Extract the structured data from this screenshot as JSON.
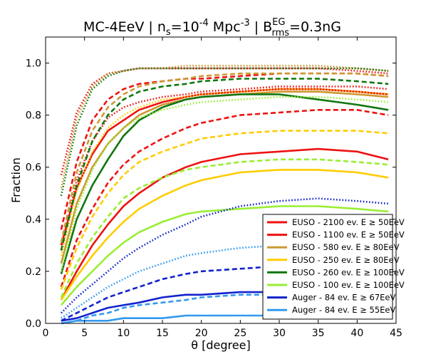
{
  "chart_data": {
    "type": "line",
    "title": {
      "main": "MC-4EeV | n",
      "ns_sub": "s",
      "eq1": "=10",
      "exp": "-4",
      "unit": " Mpc",
      "unit_exp": "-3",
      "sep": "  | B",
      "b_sup": "EG",
      "b_sub": "rms",
      "eq2": "=0.3nG"
    },
    "xlabel": "θ [degree]",
    "ylabel": "Fraction",
    "xlim": [
      0,
      45
    ],
    "ylim": [
      0,
      1.1
    ],
    "x_ticks": [
      0,
      5,
      10,
      15,
      20,
      25,
      30,
      35,
      40,
      45
    ],
    "y_ticks": [
      0.0,
      0.2,
      0.4,
      0.6,
      0.8,
      1.0
    ],
    "x_tick_labels": [
      "0",
      "5",
      "10",
      "15",
      "20",
      "25",
      "30",
      "35",
      "40",
      "45"
    ],
    "y_tick_labels": [
      "0.0",
      "0.2",
      "0.4",
      "0.6",
      "0.8",
      "1.0"
    ],
    "grid": false,
    "legend_position": "lower-right",
    "legend": [
      {
        "label": "EUSO - 2100 ev. E  ≥ 50EeV",
        "color": "#ee1111"
      },
      {
        "label": "EUSO - 1100 ev. E  ≥ 50EeV",
        "color": "#ee1111"
      },
      {
        "label": "EUSO - 580 ev. E  ≥ 80EeV",
        "color": "#cc9933"
      },
      {
        "label": "EUSO - 250 ev. E  ≥ 80EeV",
        "color": "#ffcc00"
      },
      {
        "label": "EUSO - 260 ev. E  ≥ 100EeV",
        "color": "#117711"
      },
      {
        "label": "EUSO - 100 ev. E  ≥ 100EeV",
        "color": "#99ee33"
      },
      {
        "label": "Auger - 84 ev. E  ≥ 67EeV",
        "color": "#1122cc"
      },
      {
        "label": "Auger - 84 ev. E  ≥ 55EeV",
        "color": "#3399ee"
      }
    ],
    "series": [
      {
        "color": "#ee1111",
        "dash": "solid",
        "x": [
          2,
          4,
          6,
          8,
          10,
          12,
          15,
          18,
          20,
          25,
          30,
          35,
          40,
          44
        ],
        "y": [
          0.3,
          0.52,
          0.65,
          0.74,
          0.78,
          0.82,
          0.85,
          0.87,
          0.88,
          0.89,
          0.9,
          0.9,
          0.89,
          0.88
        ]
      },
      {
        "color": "#ee1111",
        "dash": "dash",
        "x": [
          2,
          4,
          6,
          8,
          10,
          12,
          15,
          18,
          20,
          25,
          30,
          35,
          40,
          44
        ],
        "y": [
          0.36,
          0.62,
          0.78,
          0.86,
          0.9,
          0.92,
          0.93,
          0.94,
          0.94,
          0.95,
          0.96,
          0.96,
          0.96,
          0.95
        ]
      },
      {
        "color": "#ee1111",
        "dash": "dot",
        "x": [
          2,
          4,
          6,
          8,
          10,
          12,
          15,
          18,
          20,
          25,
          30,
          35,
          40,
          44
        ],
        "y": [
          0.57,
          0.81,
          0.92,
          0.96,
          0.97,
          0.98,
          0.98,
          0.98,
          0.98,
          0.98,
          0.98,
          0.98,
          0.97,
          0.96
        ]
      },
      {
        "color": "#ee1111",
        "dash": "solid",
        "x": [
          2,
          4,
          6,
          8,
          10,
          12,
          15,
          18,
          20,
          25,
          30,
          35,
          40,
          44
        ],
        "y": [
          0.09,
          0.2,
          0.3,
          0.38,
          0.45,
          0.5,
          0.56,
          0.6,
          0.62,
          0.65,
          0.66,
          0.67,
          0.66,
          0.63
        ]
      },
      {
        "color": "#ee1111",
        "dash": "dash",
        "x": [
          2,
          4,
          6,
          8,
          10,
          12,
          15,
          18,
          20,
          25,
          30,
          35,
          40,
          44
        ],
        "y": [
          0.14,
          0.32,
          0.44,
          0.54,
          0.61,
          0.66,
          0.71,
          0.75,
          0.77,
          0.8,
          0.81,
          0.82,
          0.82,
          0.8
        ]
      },
      {
        "color": "#ee1111",
        "dash": "dot",
        "x": [
          2,
          4,
          6,
          8,
          10,
          12,
          15,
          18,
          20,
          25,
          30,
          35,
          40,
          44
        ],
        "y": [
          0.28,
          0.55,
          0.7,
          0.79,
          0.83,
          0.85,
          0.87,
          0.88,
          0.89,
          0.9,
          0.91,
          0.91,
          0.91,
          0.9
        ]
      },
      {
        "color": "#cc9933",
        "dash": "solid",
        "x": [
          2,
          4,
          6,
          8,
          10,
          12,
          15,
          18,
          20,
          25,
          30,
          35,
          40,
          44
        ],
        "y": [
          0.23,
          0.46,
          0.6,
          0.69,
          0.75,
          0.8,
          0.84,
          0.86,
          0.87,
          0.88,
          0.89,
          0.89,
          0.88,
          0.87
        ]
      },
      {
        "color": "#cc9933",
        "dash": "dash",
        "x": [
          2,
          4,
          6,
          8,
          10,
          12,
          15,
          18,
          20,
          25,
          30,
          35,
          40,
          44
        ],
        "y": [
          0.31,
          0.58,
          0.74,
          0.83,
          0.88,
          0.91,
          0.93,
          0.94,
          0.95,
          0.96,
          0.96,
          0.96,
          0.96,
          0.95
        ]
      },
      {
        "color": "#cc9933",
        "dash": "dot",
        "x": [
          2,
          4,
          6,
          8,
          10,
          12,
          15,
          18,
          20,
          25,
          30,
          35,
          40,
          44
        ],
        "y": [
          0.52,
          0.79,
          0.91,
          0.96,
          0.97,
          0.98,
          0.98,
          0.99,
          0.99,
          0.99,
          0.99,
          0.99,
          0.98,
          0.97
        ]
      },
      {
        "color": "#ffcc00",
        "dash": "solid",
        "x": [
          2,
          4,
          6,
          8,
          10,
          12,
          15,
          18,
          20,
          25,
          30,
          35,
          40,
          44
        ],
        "y": [
          0.09,
          0.18,
          0.26,
          0.33,
          0.39,
          0.44,
          0.49,
          0.53,
          0.55,
          0.58,
          0.59,
          0.59,
          0.58,
          0.56
        ]
      },
      {
        "color": "#ffcc00",
        "dash": "dash",
        "x": [
          2,
          4,
          6,
          8,
          10,
          12,
          15,
          18,
          20,
          25,
          30,
          35,
          40,
          44
        ],
        "y": [
          0.13,
          0.29,
          0.41,
          0.5,
          0.57,
          0.62,
          0.66,
          0.69,
          0.71,
          0.73,
          0.74,
          0.74,
          0.74,
          0.73
        ]
      },
      {
        "color": "#ffcc00",
        "dash": "dot",
        "x": [
          2,
          4,
          6,
          8,
          10,
          12,
          15,
          18,
          20,
          25,
          30,
          35,
          40,
          44
        ],
        "y": [
          0.26,
          0.51,
          0.66,
          0.75,
          0.8,
          0.83,
          0.86,
          0.87,
          0.88,
          0.89,
          0.9,
          0.9,
          0.89,
          0.88
        ]
      },
      {
        "color": "#117711",
        "dash": "solid",
        "x": [
          2,
          4,
          6,
          8,
          10,
          12,
          15,
          18,
          20,
          25,
          30,
          35,
          40,
          44
        ],
        "y": [
          0.19,
          0.4,
          0.53,
          0.63,
          0.72,
          0.78,
          0.83,
          0.86,
          0.87,
          0.88,
          0.88,
          0.86,
          0.84,
          0.82
        ]
      },
      {
        "color": "#117711",
        "dash": "dash",
        "x": [
          2,
          4,
          6,
          8,
          10,
          12,
          15,
          18,
          20,
          25,
          30,
          35,
          40,
          44
        ],
        "y": [
          0.28,
          0.53,
          0.7,
          0.8,
          0.86,
          0.89,
          0.91,
          0.92,
          0.93,
          0.94,
          0.94,
          0.94,
          0.93,
          0.92
        ]
      },
      {
        "color": "#117711",
        "dash": "dot",
        "x": [
          2,
          4,
          6,
          8,
          10,
          12,
          15,
          18,
          20,
          25,
          30,
          35,
          40,
          44
        ],
        "y": [
          0.49,
          0.76,
          0.9,
          0.95,
          0.97,
          0.98,
          0.98,
          0.98,
          0.98,
          0.98,
          0.98,
          0.98,
          0.98,
          0.97
        ]
      },
      {
        "color": "#99ee33",
        "dash": "solid",
        "x": [
          2,
          4,
          6,
          8,
          10,
          12,
          15,
          18,
          20,
          25,
          30,
          35,
          40,
          44
        ],
        "y": [
          0.07,
          0.14,
          0.2,
          0.26,
          0.31,
          0.35,
          0.39,
          0.42,
          0.43,
          0.44,
          0.45,
          0.45,
          0.44,
          0.43
        ]
      },
      {
        "color": "#99ee33",
        "dash": "dash",
        "x": [
          2,
          4,
          6,
          8,
          10,
          12,
          15,
          18,
          20,
          25,
          30,
          35,
          40,
          44
        ],
        "y": [
          0.1,
          0.23,
          0.33,
          0.41,
          0.48,
          0.52,
          0.56,
          0.59,
          0.6,
          0.62,
          0.63,
          0.63,
          0.62,
          0.61
        ]
      },
      {
        "color": "#99ee33",
        "dash": "dot",
        "x": [
          2,
          4,
          6,
          8,
          10,
          12,
          15,
          18,
          20,
          25,
          30,
          35,
          40,
          44
        ],
        "y": [
          0.2,
          0.44,
          0.59,
          0.69,
          0.75,
          0.79,
          0.82,
          0.84,
          0.85,
          0.86,
          0.87,
          0.87,
          0.86,
          0.85
        ]
      },
      {
        "color": "#1122cc",
        "dash": "solid",
        "x": [
          2,
          4,
          6,
          8,
          10,
          12,
          15,
          18,
          20,
          25,
          30,
          35,
          40,
          44
        ],
        "y": [
          0.01,
          0.02,
          0.04,
          0.06,
          0.07,
          0.08,
          0.1,
          0.11,
          0.11,
          0.12,
          0.12,
          0.12,
          0.12,
          0.12
        ]
      },
      {
        "color": "#1122cc",
        "dash": "dash",
        "x": [
          2,
          4,
          6,
          8,
          10,
          12,
          15,
          18,
          20,
          25,
          30,
          35,
          40,
          44
        ],
        "y": [
          0.01,
          0.04,
          0.07,
          0.1,
          0.12,
          0.14,
          0.17,
          0.19,
          0.2,
          0.21,
          0.22,
          0.22,
          0.22,
          0.22
        ]
      },
      {
        "color": "#1122cc",
        "dash": "dot",
        "x": [
          2,
          4,
          6,
          8,
          10,
          12,
          15,
          18,
          20,
          25,
          30,
          35,
          40,
          44
        ],
        "y": [
          0.04,
          0.1,
          0.15,
          0.2,
          0.25,
          0.29,
          0.34,
          0.38,
          0.41,
          0.45,
          0.47,
          0.48,
          0.47,
          0.46
        ]
      },
      {
        "color": "#3399ee",
        "dash": "solid",
        "x": [
          2,
          4,
          6,
          8,
          10,
          12,
          15,
          18,
          20,
          25,
          30,
          35,
          40,
          44
        ],
        "y": [
          0.0,
          0.01,
          0.01,
          0.01,
          0.02,
          0.02,
          0.02,
          0.03,
          0.03,
          0.03,
          0.03,
          0.03,
          0.03,
          0.03
        ]
      },
      {
        "color": "#3399ee",
        "dash": "dash",
        "x": [
          2,
          4,
          6,
          8,
          10,
          12,
          15,
          18,
          20,
          25,
          30,
          35,
          40,
          44
        ],
        "y": [
          0.0,
          0.01,
          0.03,
          0.04,
          0.06,
          0.07,
          0.08,
          0.09,
          0.1,
          0.11,
          0.11,
          0.11,
          0.11,
          0.11
        ]
      },
      {
        "color": "#3399ee",
        "dash": "dot",
        "x": [
          2,
          4,
          6,
          8,
          10,
          12,
          15,
          18,
          20,
          25,
          30,
          35,
          40,
          44
        ],
        "y": [
          0.02,
          0.06,
          0.1,
          0.14,
          0.17,
          0.2,
          0.23,
          0.26,
          0.27,
          0.29,
          0.3,
          0.31,
          0.31,
          0.3
        ]
      }
    ]
  }
}
